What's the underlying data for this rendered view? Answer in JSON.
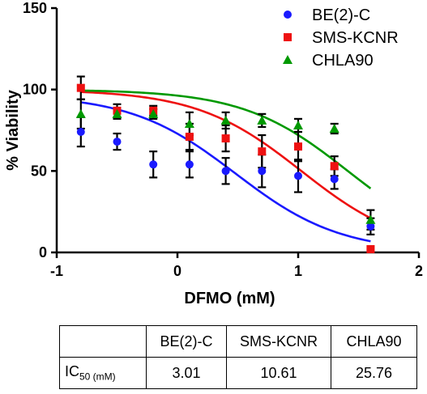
{
  "chart_data": {
    "type": "scatter",
    "xlabel": "DFMO (mM)",
    "ylabel": "% Viability",
    "xlim": [
      -1,
      2
    ],
    "ylim": [
      0,
      150
    ],
    "xticks": [
      "-1",
      "0",
      "1",
      "2"
    ],
    "yticks": [
      "0",
      "50",
      "100",
      "150"
    ],
    "grid": false,
    "legend_position": "top-right",
    "series": [
      {
        "name": "BE(2)-C",
        "marker": "circle",
        "color": "#1a1aff",
        "x": [
          -0.8,
          -0.5,
          -0.2,
          0.1,
          0.4,
          0.7,
          1.0,
          1.3,
          1.6
        ],
        "y": [
          74,
          68,
          54,
          54,
          50,
          50,
          47,
          45,
          16
        ],
        "err": [
          9,
          5,
          8,
          8,
          8,
          10,
          10,
          6,
          5
        ],
        "fit_ic50_log": 0.48,
        "fit_top": 97,
        "fit_bottom": 0
      },
      {
        "name": "SMS-KCNR",
        "marker": "square",
        "color": "#ee1111",
        "x": [
          -0.8,
          -0.5,
          -0.2,
          0.1,
          0.4,
          0.7,
          1.0,
          1.3,
          1.6
        ],
        "y": [
          101,
          87,
          87,
          71,
          70,
          62,
          65,
          53,
          2
        ],
        "err": [
          7,
          4,
          3,
          8,
          8,
          10,
          9,
          6,
          0
        ],
        "fit_ic50_log": 1.026,
        "fit_top": 100,
        "fit_bottom": 0
      },
      {
        "name": "CHLA90",
        "marker": "triangle",
        "color": "#009900",
        "x": [
          -0.8,
          -0.5,
          -0.2,
          0.1,
          0.4,
          0.7,
          1.0,
          1.3,
          1.6
        ],
        "y": [
          85,
          85,
          85,
          79,
          81,
          81,
          78,
          76,
          20
        ],
        "err": [
          9,
          3,
          3,
          7,
          5,
          4,
          4,
          3,
          6
        ],
        "fit_ic50_log": 1.411,
        "fit_top": 100,
        "fit_bottom": 0
      }
    ],
    "table": {
      "headers": [
        "",
        "BE(2)-C",
        "SMS-KCNR",
        "CHLA90"
      ],
      "row_label": "IC",
      "row_label_sub": "50 (mM)",
      "values": [
        "3.01",
        "10.61",
        "25.76"
      ]
    }
  }
}
